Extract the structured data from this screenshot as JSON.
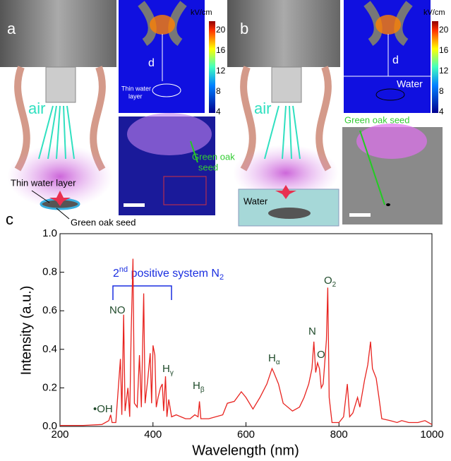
{
  "panels": {
    "a": {
      "label": "a",
      "unit": "kV/cm",
      "colorbar_ticks": [
        20,
        16,
        12,
        8,
        4
      ],
      "d": "d",
      "sim_text": [
        "Thin water",
        "layer"
      ],
      "air": "air",
      "seed_label": "Green oak",
      "seed_label2": "seed",
      "water_label": "Thin water layer",
      "seed_text": "Green oak seed"
    },
    "b": {
      "label": "b",
      "unit": "kV/cm",
      "colorbar_ticks": [
        20,
        16,
        12,
        8,
        4
      ],
      "d": "d",
      "sim_water": "Water",
      "air": "air",
      "seed_label": "Green oak seed",
      "water_label": "Water"
    },
    "c": {
      "label": "c"
    }
  },
  "chart_data": {
    "type": "line",
    "x_label": "Wavelength (nm)",
    "y_label": "Intensity (a.u.)",
    "xlim": [
      200,
      1000
    ],
    "ylim": [
      0,
      1
    ],
    "xticks": [
      200,
      400,
      600,
      800,
      1000
    ],
    "yticks": [
      {
        "value": 0,
        "label": "0.0"
      },
      0.2,
      0.4,
      0.6,
      0.8,
      {
        "value": 1,
        "label": "1.0"
      }
    ],
    "series": [
      {
        "color": "#e8231f",
        "x": [
          200,
          250,
          290,
          305,
          309,
          312,
          320,
          330,
          333,
          337,
          340,
          346,
          350,
          353,
          357,
          360,
          366,
          371,
          375,
          380,
          383,
          389,
          394,
          397,
          400,
          404,
          407,
          411,
          416,
          420,
          423,
          427,
          430,
          434,
          440,
          450,
          460,
          470,
          480,
          490,
          497,
          500,
          503,
          520,
          550,
          560,
          575,
          590,
          600,
          615,
          630,
          645,
          656,
          660,
          670,
          680,
          700,
          715,
          725,
          735,
          742,
          746,
          750,
          754,
          758,
          762,
          766,
          770,
          773,
          776,
          779,
          785,
          800,
          810,
          818,
          823,
          830,
          840,
          845,
          855,
          862,
          868,
          872,
          880,
          886,
          892,
          910,
          925,
          935,
          950,
          970,
          985,
          1000
        ],
        "values": [
          0.005,
          0.005,
          0.01,
          0.03,
          0.06,
          0.02,
          0.02,
          0.35,
          0.06,
          0.58,
          0.08,
          0.2,
          0.05,
          0.48,
          0.87,
          0.12,
          0.1,
          0.37,
          0.1,
          0.69,
          0.12,
          0.25,
          0.38,
          0.12,
          0.42,
          0.37,
          0.1,
          0.15,
          0.2,
          0.22,
          0.08,
          0.26,
          0.05,
          0.14,
          0.05,
          0.06,
          0.05,
          0.04,
          0.04,
          0.06,
          0.05,
          0.13,
          0.04,
          0.04,
          0.06,
          0.12,
          0.13,
          0.18,
          0.15,
          0.09,
          0.15,
          0.22,
          0.3,
          0.28,
          0.22,
          0.12,
          0.08,
          0.1,
          0.15,
          0.22,
          0.3,
          0.44,
          0.28,
          0.33,
          0.3,
          0.2,
          0.22,
          0.35,
          0.45,
          0.72,
          0.15,
          0.02,
          0.02,
          0.05,
          0.22,
          0.05,
          0.07,
          0.15,
          0.1,
          0.24,
          0.32,
          0.44,
          0.3,
          0.25,
          0.15,
          0.04,
          0.03,
          0.02,
          0.03,
          0.02,
          0.02,
          0.03,
          0.01
        ]
      }
    ],
    "annotations": [
      {
        "text": "•OH"
      },
      {
        "text": "NO"
      },
      {
        "text": "H",
        "sub": "γ"
      },
      {
        "text": "H",
        "sub": "β"
      },
      {
        "text": "H",
        "sub": "α"
      },
      {
        "text": "N"
      },
      {
        "text": "O"
      },
      {
        "text": "O",
        "sub": "2"
      }
    ],
    "system_label": {
      "base": "2",
      "sup": "nd",
      "text": " positive system N",
      "sub": "2"
    }
  }
}
